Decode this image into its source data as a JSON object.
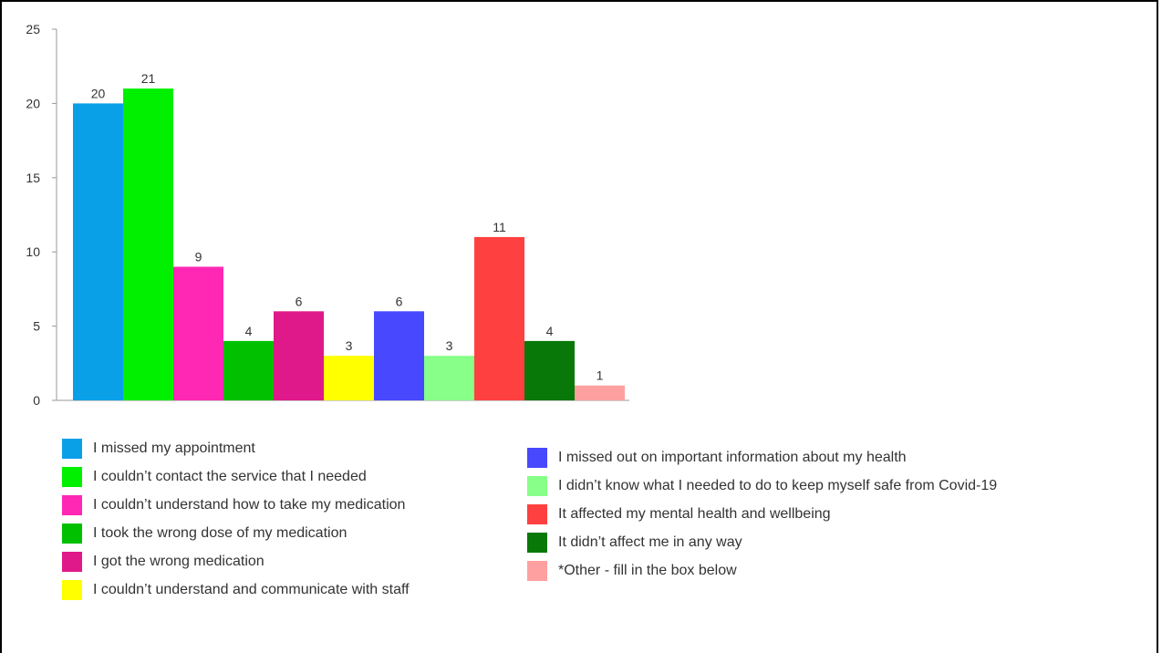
{
  "chart_data": {
    "type": "bar",
    "categories": [
      "I missed my appointment",
      "I couldn’t contact the service that I needed",
      "I couldn’t understand how to take my medication",
      "I took the wrong dose of my medication",
      "I got the wrong medication",
      "I couldn’t understand and communicate with staff",
      "I missed out on important information about my health",
      "I didn’t know what I needed to do to keep myself safe from Covid-19",
      "It affected my mental health and wellbeing",
      "It didn’t affect me in any way",
      "*Other - fill in the box below"
    ],
    "values": [
      20,
      21,
      9,
      4,
      6,
      3,
      6,
      3,
      11,
      4,
      1
    ],
    "colors": [
      "#0aa0e8",
      "#00f000",
      "#ff28b4",
      "#00c000",
      "#e0198a",
      "#ffff00",
      "#4848ff",
      "#88ff88",
      "#ff4040",
      "#087808",
      "#ffa0a0"
    ],
    "ylim": [
      0,
      25
    ],
    "yticks": [
      "0",
      "5",
      "10",
      "15",
      "20",
      "25"
    ],
    "grid": false,
    "legend_position": "bottom",
    "data_labels": true
  }
}
